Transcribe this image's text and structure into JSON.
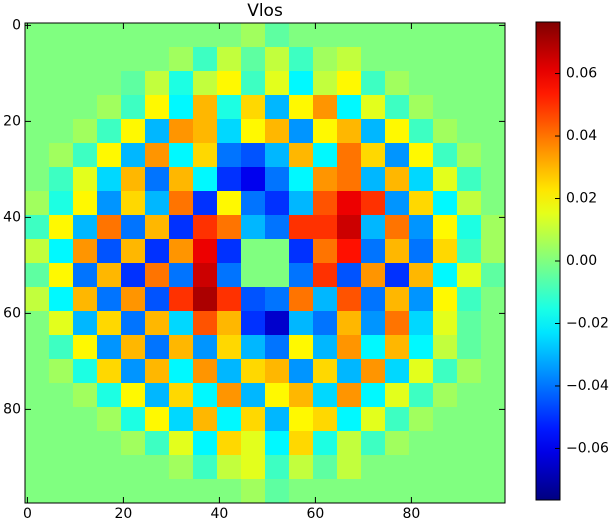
{
  "chart_data": {
    "type": "heatmap",
    "title": "Vlos",
    "colormap": "jet",
    "xlim": [
      -0.5,
      99.5
    ],
    "ylim": [
      99.5,
      -0.5
    ],
    "xticks": [
      0,
      20,
      40,
      60,
      80
    ],
    "yticks": [
      0,
      20,
      40,
      60,
      80
    ],
    "clim": [
      -0.0765,
      0.0765
    ],
    "cticks": [
      {
        "value": -0.06,
        "label": "−0.06"
      },
      {
        "value": -0.04,
        "label": "−0.04"
      },
      {
        "value": -0.02,
        "label": "−0.02"
      },
      {
        "value": 0,
        "label": "0.00"
      },
      0.02,
      0.04,
      0.06
    ],
    "z": [
      [
        0,
        0,
        0,
        0,
        0,
        0,
        0,
        0,
        0,
        0.005,
        -0.005,
        0,
        0,
        0,
        0,
        0,
        0,
        0,
        0,
        0
      ],
      [
        0,
        0,
        0,
        0,
        0,
        0,
        0.005,
        -0.01,
        0.01,
        -0.005,
        0.01,
        -0.01,
        0.005,
        0.01,
        0,
        0,
        0,
        0,
        0,
        0
      ],
      [
        0,
        0,
        0,
        0,
        -0.005,
        0.01,
        -0.015,
        0.01,
        0.02,
        -0.01,
        0.015,
        -0.02,
        0.01,
        0.02,
        -0.01,
        0.005,
        0,
        0,
        0,
        0
      ],
      [
        0,
        0,
        0,
        0.005,
        -0.01,
        0.02,
        -0.02,
        0.03,
        -0.015,
        0.025,
        -0.03,
        0.02,
        0.035,
        -0.02,
        0.015,
        -0.01,
        0.005,
        0,
        0,
        0
      ],
      [
        0,
        0,
        0.005,
        -0.01,
        0.02,
        -0.03,
        0.035,
        0.03,
        -0.025,
        0.02,
        0.03,
        -0.035,
        0.02,
        0.03,
        -0.03,
        0.02,
        -0.01,
        0.005,
        0,
        0
      ],
      [
        0,
        0.005,
        -0.01,
        0.02,
        -0.03,
        0.035,
        -0.02,
        0.025,
        -0.04,
        -0.045,
        -0.03,
        0.03,
        -0.02,
        0.04,
        0.025,
        -0.035,
        0.02,
        -0.01,
        0.005,
        0
      ],
      [
        0,
        -0.01,
        0.015,
        -0.025,
        0.03,
        -0.04,
        0.03,
        -0.02,
        -0.05,
        -0.06,
        -0.04,
        -0.02,
        0.035,
        0.04,
        -0.03,
        0.03,
        -0.025,
        0.015,
        -0.01,
        0
      ],
      [
        0.005,
        -0.015,
        0.02,
        -0.035,
        0.025,
        -0.03,
        0.04,
        -0.05,
        0.02,
        -0.04,
        -0.05,
        -0.03,
        0.045,
        0.06,
        0.05,
        -0.035,
        0.025,
        -0.02,
        0.01,
        0
      ],
      [
        -0.01,
        0.02,
        -0.03,
        0.04,
        -0.04,
        0.03,
        -0.05,
        0.05,
        0.04,
        -0.03,
        -0.04,
        0.05,
        0.05,
        0.065,
        -0.03,
        0.04,
        -0.035,
        0.02,
        -0.015,
        0.005
      ],
      [
        0.01,
        -0.02,
        0.035,
        -0.045,
        0.03,
        -0.05,
        0.035,
        0.06,
        -0.05,
        0,
        0,
        -0.05,
        0.04,
        0.055,
        -0.04,
        0.03,
        -0.04,
        0.025,
        -0.01,
        0.005
      ],
      [
        -0.005,
        0.02,
        -0.04,
        0.03,
        -0.05,
        0.04,
        -0.04,
        0.065,
        -0.04,
        0,
        0,
        -0.04,
        0.05,
        -0.045,
        0.035,
        -0.05,
        0.03,
        -0.02,
        0.015,
        -0.005
      ],
      [
        0.01,
        -0.02,
        0.03,
        -0.04,
        0.035,
        -0.045,
        0.05,
        0.07,
        0.05,
        -0.045,
        -0.04,
        0.04,
        -0.03,
        0.045,
        -0.04,
        0.03,
        -0.035,
        0.02,
        -0.01,
        0
      ],
      [
        0,
        0.015,
        -0.03,
        0.025,
        -0.04,
        0.03,
        -0.025,
        0.045,
        0.03,
        -0.05,
        -0.065,
        -0.03,
        -0.04,
        0.03,
        -0.035,
        0.04,
        -0.025,
        0.015,
        -0.005,
        0
      ],
      [
        0,
        -0.01,
        0.02,
        -0.035,
        0.03,
        -0.04,
        0.03,
        -0.035,
        0.025,
        -0.03,
        -0.04,
        0.02,
        -0.03,
        0.035,
        -0.02,
        0.03,
        -0.02,
        0.01,
        -0.005,
        0
      ],
      [
        0,
        0.005,
        -0.015,
        0.025,
        -0.035,
        0.03,
        -0.02,
        0.035,
        -0.03,
        0.025,
        0.03,
        -0.035,
        0.025,
        -0.03,
        0.035,
        -0.025,
        0.015,
        -0.01,
        0.005,
        0
      ],
      [
        0,
        0,
        0.005,
        -0.015,
        0.02,
        -0.03,
        0.025,
        -0.02,
        0.035,
        -0.03,
        0.02,
        0.03,
        -0.025,
        0.035,
        -0.02,
        0.015,
        -0.01,
        0.005,
        0,
        0
      ],
      [
        0,
        0,
        0,
        0.005,
        -0.015,
        0.02,
        -0.025,
        0.03,
        -0.02,
        0.025,
        -0.03,
        0.02,
        0.025,
        -0.02,
        0.015,
        -0.01,
        0.005,
        0,
        0,
        0
      ],
      [
        0,
        0,
        0,
        0,
        0.005,
        -0.01,
        0.015,
        -0.02,
        0.025,
        0.015,
        -0.02,
        0.025,
        -0.015,
        0.01,
        -0.01,
        0.005,
        0,
        0,
        0,
        0
      ],
      [
        0,
        0,
        0,
        0,
        0,
        0,
        0.005,
        -0.01,
        0.01,
        0.015,
        -0.01,
        0.01,
        -0.005,
        0.01,
        0,
        0,
        0,
        0,
        0,
        0
      ],
      [
        0,
        0,
        0,
        0,
        0,
        0,
        0,
        0,
        0,
        0.005,
        -0.005,
        0,
        0,
        0,
        0,
        0,
        0,
        0,
        0,
        0
      ]
    ]
  }
}
